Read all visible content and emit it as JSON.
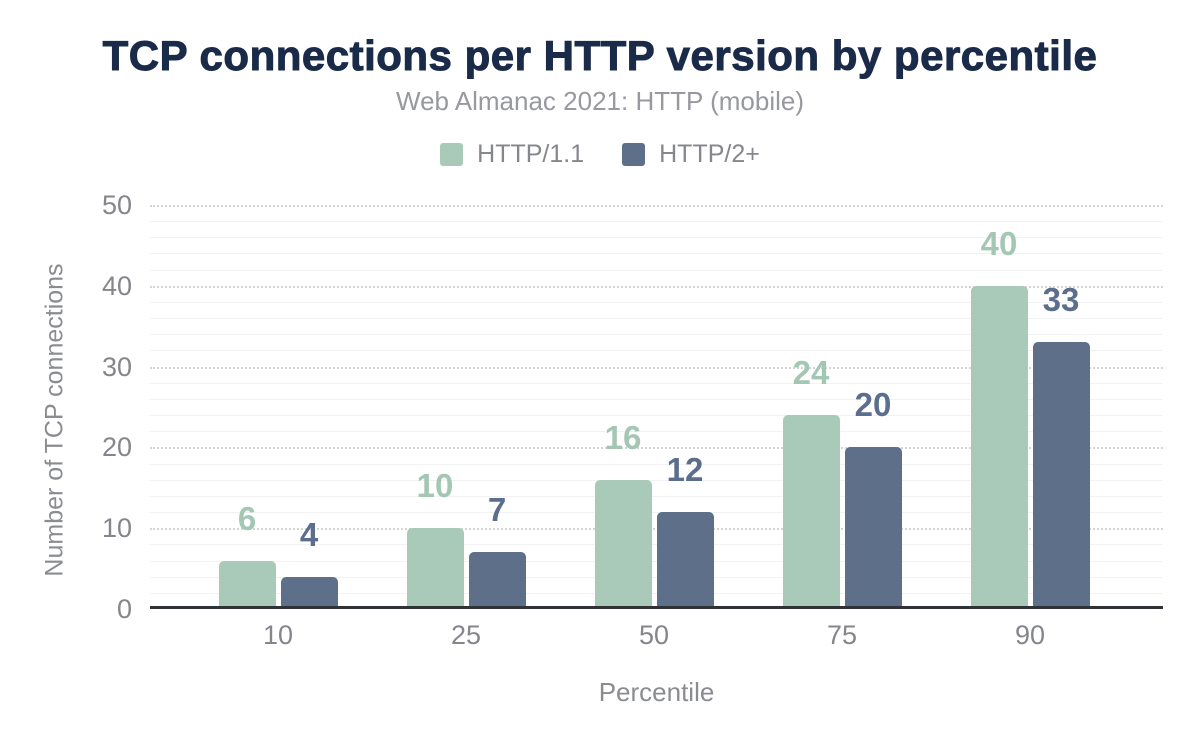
{
  "figure": {
    "title": "TCP connections per HTTP version by percentile",
    "subtitle": "Web Almanac 2021: HTTP (mobile)"
  },
  "chart_data": {
    "type": "bar",
    "title": "TCP connections per HTTP version by percentile",
    "subtitle": "Web Almanac 2021: HTTP (mobile)",
    "categories": [
      "10",
      "25",
      "50",
      "75",
      "90"
    ],
    "series": [
      {
        "name": "HTTP/1.1",
        "values": [
          6,
          10,
          16,
          24,
          40
        ],
        "color": "#a9cab8",
        "label_color": "#a4c7b4"
      },
      {
        "name": "HTTP/2+",
        "values": [
          4,
          7,
          12,
          20,
          33
        ],
        "color": "#5e7089",
        "label_color": "#5b6e8d"
      }
    ],
    "xlabel": "Percentile",
    "ylabel": "Number of TCP connections",
    "ylim": [
      0,
      50
    ],
    "yticks": [
      0,
      10,
      20,
      30,
      40,
      50
    ],
    "minor_gridline_step": 2,
    "grid": "major gridlines dotted every 10, minor solid every 2",
    "legend_position": "top",
    "data_labels": true
  },
  "colors": {
    "title": "#1a2b49",
    "subtitle": "#97999e",
    "axis_text": "#84868b",
    "axis_title": "#8a8c90",
    "axis_line": "#2f3237",
    "major_grid": "#d4d4d4",
    "minor_grid": "#f2f2f2",
    "background": "#ffffff"
  }
}
